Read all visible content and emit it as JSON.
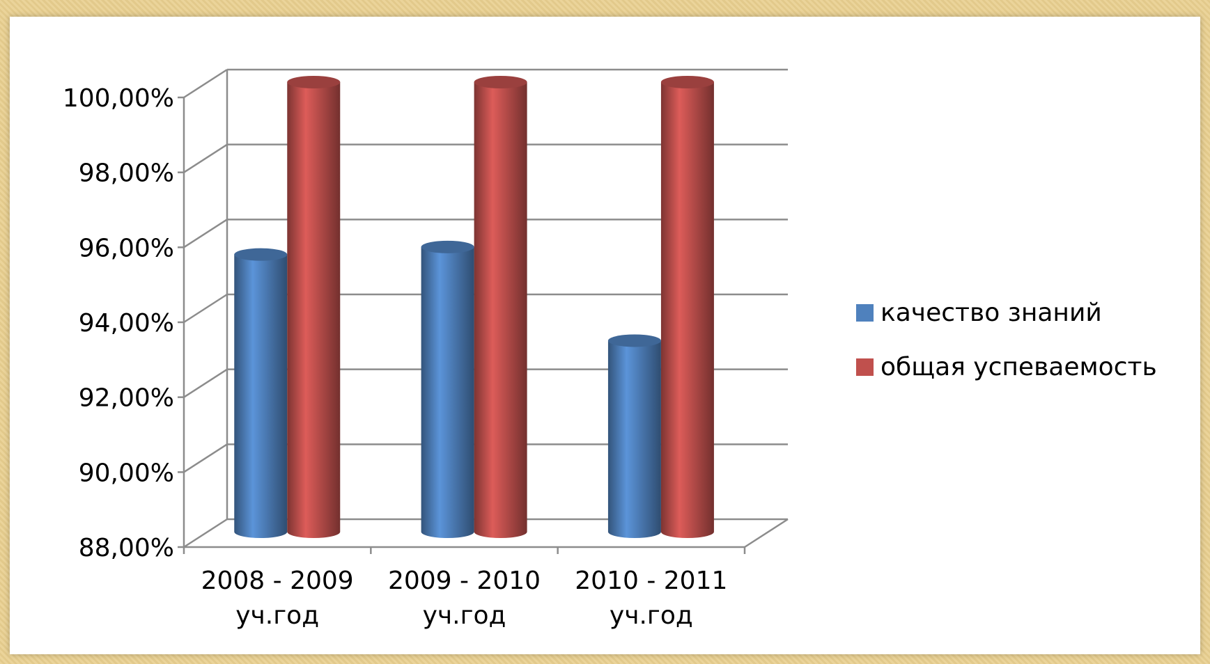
{
  "chart_data": {
    "type": "bar",
    "style": "3d-cylinder",
    "categories": [
      "2008 - 2009 уч.год",
      "2009 - 2010 уч.год",
      "2010 - 2011 уч.год"
    ],
    "category_lines": [
      [
        "2008 - 2009",
        "уч.год"
      ],
      [
        "2009 - 2010",
        "уч.год"
      ],
      [
        "2010 - 2011",
        "уч.год"
      ]
    ],
    "series": [
      {
        "name": "качество знаний",
        "values": [
          95.4,
          95.6,
          93.1
        ],
        "color": "#4f81bd"
      },
      {
        "name": "общая успеваемость",
        "values": [
          100.0,
          100.0,
          100.0
        ],
        "color": "#c0504d"
      }
    ],
    "ylim": [
      88,
      100
    ],
    "yticks": [
      88,
      90,
      92,
      94,
      96,
      98,
      100
    ],
    "ytick_labels": [
      "88,00%",
      "90,00%",
      "92,00%",
      "94,00%",
      "96,00%",
      "98,00%",
      "100,00%"
    ],
    "grid": true,
    "legend_position": "right"
  }
}
